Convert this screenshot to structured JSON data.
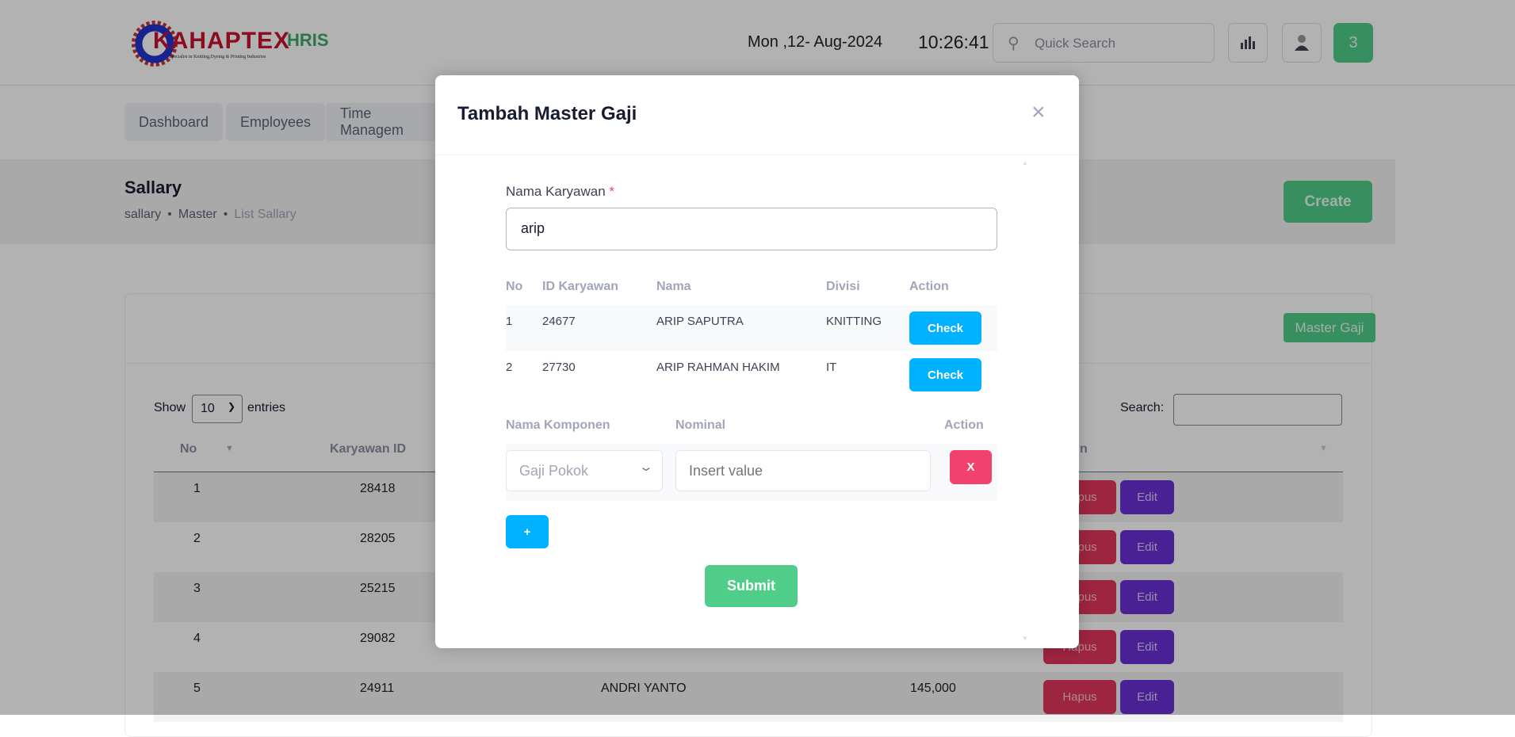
{
  "header": {
    "logo_text": "KAHAPTEX",
    "logo_tagline": "Specialist in Knitting,Dyeing & Printing Industries",
    "app_name": "HRIS",
    "date": "Mon ,12- Aug-2024",
    "time": "10:26:41",
    "search_placeholder": "Quick Search",
    "notification_count": "3"
  },
  "nav": {
    "items": [
      {
        "label": "Dashboard"
      },
      {
        "label": "Employees"
      },
      {
        "label": "Time Managem"
      }
    ]
  },
  "page": {
    "title": "Sallary",
    "breadcrumb": [
      "sallary",
      "Master",
      "List Sallary"
    ],
    "create_label": "Create",
    "master_gaji_label": "Master Gaji"
  },
  "table": {
    "show_label": "Show",
    "entries_value": "10",
    "entries_label": "entries",
    "search_label": "Search:",
    "columns": [
      "No",
      "Karyawan ID",
      "n"
    ],
    "rows": [
      {
        "no": "1",
        "id": "28418",
        "name": "",
        "amount": ""
      },
      {
        "no": "2",
        "id": "28205",
        "name": "",
        "amount": ""
      },
      {
        "no": "3",
        "id": "25215",
        "name": "",
        "amount": ""
      },
      {
        "no": "4",
        "id": "29082",
        "name": "",
        "amount": ""
      },
      {
        "no": "5",
        "id": "24911",
        "name": "ANDRI YANTO",
        "amount": "145,000"
      }
    ],
    "hapus_label": "Hapus",
    "edit_label": "Edit"
  },
  "modal": {
    "title": "Tambah Master Gaji",
    "name_label": "Nama Karyawan",
    "required_mark": "*",
    "name_value": "arip",
    "result_columns": [
      "No",
      "ID Karyawan",
      "Nama",
      "Divisi",
      "Action"
    ],
    "results": [
      {
        "no": "1",
        "id": "24677",
        "name": "ARIP SAPUTRA",
        "divisi": "KNITTING",
        "action": "Check"
      },
      {
        "no": "2",
        "id": "27730",
        "name": "ARIP RAHMAN HAKIM",
        "divisi": "IT",
        "action": "Check"
      }
    ],
    "component_columns": [
      "Nama Komponen",
      "Nominal",
      "Action"
    ],
    "component_select": "Gaji Pokok",
    "nominal_placeholder": "Insert value",
    "remove_label": "X",
    "add_label": "+",
    "submit_label": "Submit"
  },
  "colors": {
    "green": "#50cd89",
    "blue": "#00b2ff",
    "red": "#f1416c",
    "purple": "#7239ea"
  }
}
